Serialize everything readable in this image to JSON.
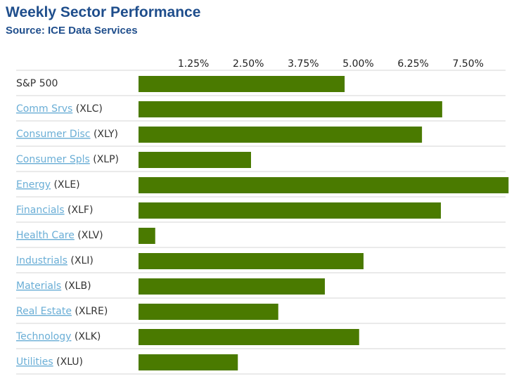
{
  "chart_data": {
    "type": "bar",
    "orientation": "horizontal",
    "title": "Weekly Sector Performance",
    "subtitle": "Source: ICE Data Services",
    "xlabel": "",
    "ylabel": "",
    "xlim": [
      0,
      8.4
    ],
    "tick_labels": [
      "1.25%",
      "2.50%",
      "3.75%",
      "5.00%",
      "6.25%",
      "7.50%"
    ],
    "tick_values": [
      1.25,
      2.5,
      3.75,
      5.0,
      6.25,
      7.5
    ],
    "categories": [
      {
        "name": "S&P 500",
        "ticker": "",
        "link": false
      },
      {
        "name": "Comm Srvs",
        "ticker": "(XLC)",
        "link": true
      },
      {
        "name": "Consumer Disc",
        "ticker": "(XLY)",
        "link": true
      },
      {
        "name": "Consumer Spls",
        "ticker": "(XLP)",
        "link": true
      },
      {
        "name": "Energy",
        "ticker": "(XLE)",
        "link": true
      },
      {
        "name": "Financials",
        "ticker": "(XLF)",
        "link": true
      },
      {
        "name": "Health Care",
        "ticker": "(XLV)",
        "link": true
      },
      {
        "name": "Industrials",
        "ticker": "(XLI)",
        "link": true
      },
      {
        "name": "Materials",
        "ticker": "(XLB)",
        "link": true
      },
      {
        "name": "Real Estate",
        "ticker": "(XLRE)",
        "link": true
      },
      {
        "name": "Technology",
        "ticker": "(XLK)",
        "link": true
      },
      {
        "name": "Utilities",
        "ticker": "(XLU)",
        "link": true
      }
    ],
    "values": [
      4.69,
      6.91,
      6.45,
      2.56,
      8.42,
      6.88,
      0.38,
      5.12,
      4.24,
      3.18,
      5.02,
      2.26
    ],
    "bar_color": "#4a7a00",
    "grid": false
  }
}
